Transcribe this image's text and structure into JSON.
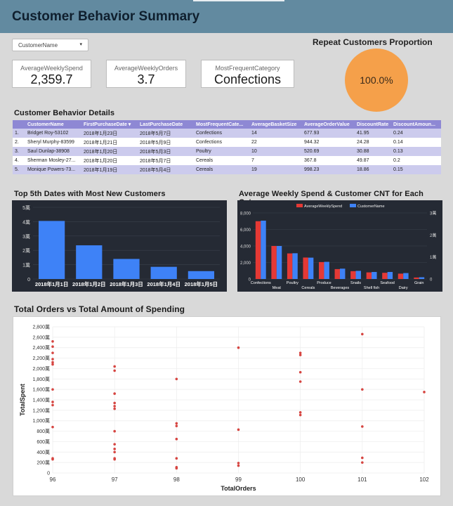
{
  "header": {
    "title": "Customer Behavior Summary"
  },
  "filter": {
    "label": "CustomerName",
    "caret": "▾"
  },
  "kpis": [
    {
      "label": "AverageWeeklySpend",
      "value": "2,359.7"
    },
    {
      "label": "AverageWeeklyOrders",
      "value": "3.7"
    },
    {
      "label": "MostFrequentCategory",
      "value": "Confections"
    }
  ],
  "repeat": {
    "title": "Repeat Customers Proportion",
    "value": "100.0%",
    "color": "#f5a04a"
  },
  "details": {
    "title": "Customer Behavior Details",
    "columns": [
      "",
      "CustomerName",
      "FirstPurchaseDate ▾",
      "LastPurchaseDate",
      "MostFrequentCate...",
      "AverageBasketSize",
      "AverageOrderValue",
      "DiscountRate",
      "DiscountAmoun..."
    ],
    "rows": [
      [
        "1.",
        "Bridget Roy-53102",
        "2018年1月23日",
        "2018年5月7日",
        "Confections",
        "14",
        "677.93",
        "41.95",
        "0.24"
      ],
      [
        "2.",
        "Sheryl Murphy-83599",
        "2018年1月21日",
        "2018年5月9日",
        "Confections",
        "22",
        "944.32",
        "24.28",
        "0.14"
      ],
      [
        "3.",
        "Saul Dunlap-38908",
        "2018年1月20日",
        "2018年5月3日",
        "Poultry",
        "10",
        "520.69",
        "30.88",
        "0.13"
      ],
      [
        "4.",
        "Sherman Mosley-27...",
        "2018年1月20日",
        "2018年5月7日",
        "Cereals",
        "7",
        "367.8",
        "49.87",
        "0.2"
      ],
      [
        "5.",
        "Monique Powers-73...",
        "2018年1月19日",
        "2018年5月4日",
        "Cereals",
        "19",
        "998.23",
        "18.86",
        "0.15"
      ]
    ]
  },
  "chart_data": [
    {
      "type": "bar",
      "title": "Top 5th Dates with Most New Customers",
      "categories": [
        "2018年1月1日",
        "2018年1月2日",
        "2018年1月3日",
        "2018年1月4日",
        "2018年1月5日"
      ],
      "values": [
        4.05,
        2.35,
        1.4,
        0.85,
        0.55
      ],
      "ylim": [
        0,
        5
      ],
      "yticks": [
        "0",
        "1萬",
        "2萬",
        "3萬",
        "4萬",
        "5萬"
      ],
      "color": "#3e82f7"
    },
    {
      "type": "bar",
      "title": "Average Weekly Spend & Customer CNT for Each Category",
      "categories": [
        "Confections",
        "Meat",
        "Poultry",
        "Cereals",
        "Produce",
        "Beverages",
        "Snails",
        "Shell fish",
        "Seafood",
        "Dairy",
        "Grain"
      ],
      "series": [
        {
          "name": "AverageWeeklySpend",
          "color": "#e53935",
          "values": [
            7000,
            4000,
            3100,
            2600,
            2050,
            1200,
            950,
            800,
            750,
            650,
            180
          ],
          "axis": "left"
        },
        {
          "name": "CustomerName",
          "color": "#3e82f7",
          "values": [
            2.65,
            1.5,
            1.17,
            0.97,
            0.78,
            0.47,
            0.37,
            0.32,
            0.32,
            0.27,
            0.08
          ],
          "axis": "right"
        }
      ],
      "ylim_left": [
        0,
        8000
      ],
      "yticks_left": [
        "0",
        "2,000",
        "4,000",
        "6,000",
        "8,000"
      ],
      "ylim_right": [
        0,
        3
      ],
      "yticks_right": [
        "0",
        "1萬",
        "2萬",
        "3萬"
      ]
    },
    {
      "type": "scatter",
      "title": "Total Orders vs Total Amount of Spending",
      "xlabel": "TotalOrders",
      "ylabel": "TotalSpent",
      "xlim": [
        96,
        102
      ],
      "ylim": [
        0,
        2800
      ],
      "xticks": [
        "96",
        "97",
        "98",
        "99",
        "100",
        "101",
        "102"
      ],
      "yticks": [
        "0",
        "200萬",
        "400萬",
        "600萬",
        "800萬",
        "1,000萬",
        "1,200萬",
        "1,400萬",
        "1,600萬",
        "1,800萬",
        "2,000萬",
        "2,200萬",
        "2,400萬",
        "2,600萬",
        "2,800萬"
      ],
      "color": "#d64541",
      "points": [
        [
          96,
          2520
        ],
        [
          96,
          2420
        ],
        [
          96,
          2300
        ],
        [
          96,
          2180
        ],
        [
          96,
          2120
        ],
        [
          96,
          2080
        ],
        [
          96,
          1600
        ],
        [
          96,
          1360
        ],
        [
          96,
          1300
        ],
        [
          96,
          880
        ],
        [
          96,
          280
        ],
        [
          96,
          260
        ],
        [
          97,
          2040
        ],
        [
          97,
          1960
        ],
        [
          97,
          1520
        ],
        [
          97,
          1340
        ],
        [
          97,
          1280
        ],
        [
          97,
          1230
        ],
        [
          97,
          800
        ],
        [
          97,
          550
        ],
        [
          97,
          460
        ],
        [
          97,
          400
        ],
        [
          97,
          280
        ],
        [
          97,
          260
        ],
        [
          98,
          1800
        ],
        [
          98,
          950
        ],
        [
          98,
          900
        ],
        [
          98,
          650
        ],
        [
          98,
          280
        ],
        [
          98,
          110
        ],
        [
          98,
          90
        ],
        [
          99,
          2400
        ],
        [
          99,
          830
        ],
        [
          99,
          190
        ],
        [
          99,
          140
        ],
        [
          100,
          2300
        ],
        [
          100,
          2260
        ],
        [
          100,
          1930
        ],
        [
          100,
          1750
        ],
        [
          100,
          1160
        ],
        [
          100,
          1110
        ],
        [
          101,
          2660
        ],
        [
          101,
          1600
        ],
        [
          101,
          890
        ],
        [
          101,
          290
        ],
        [
          101,
          200
        ],
        [
          102,
          1550
        ]
      ]
    }
  ]
}
